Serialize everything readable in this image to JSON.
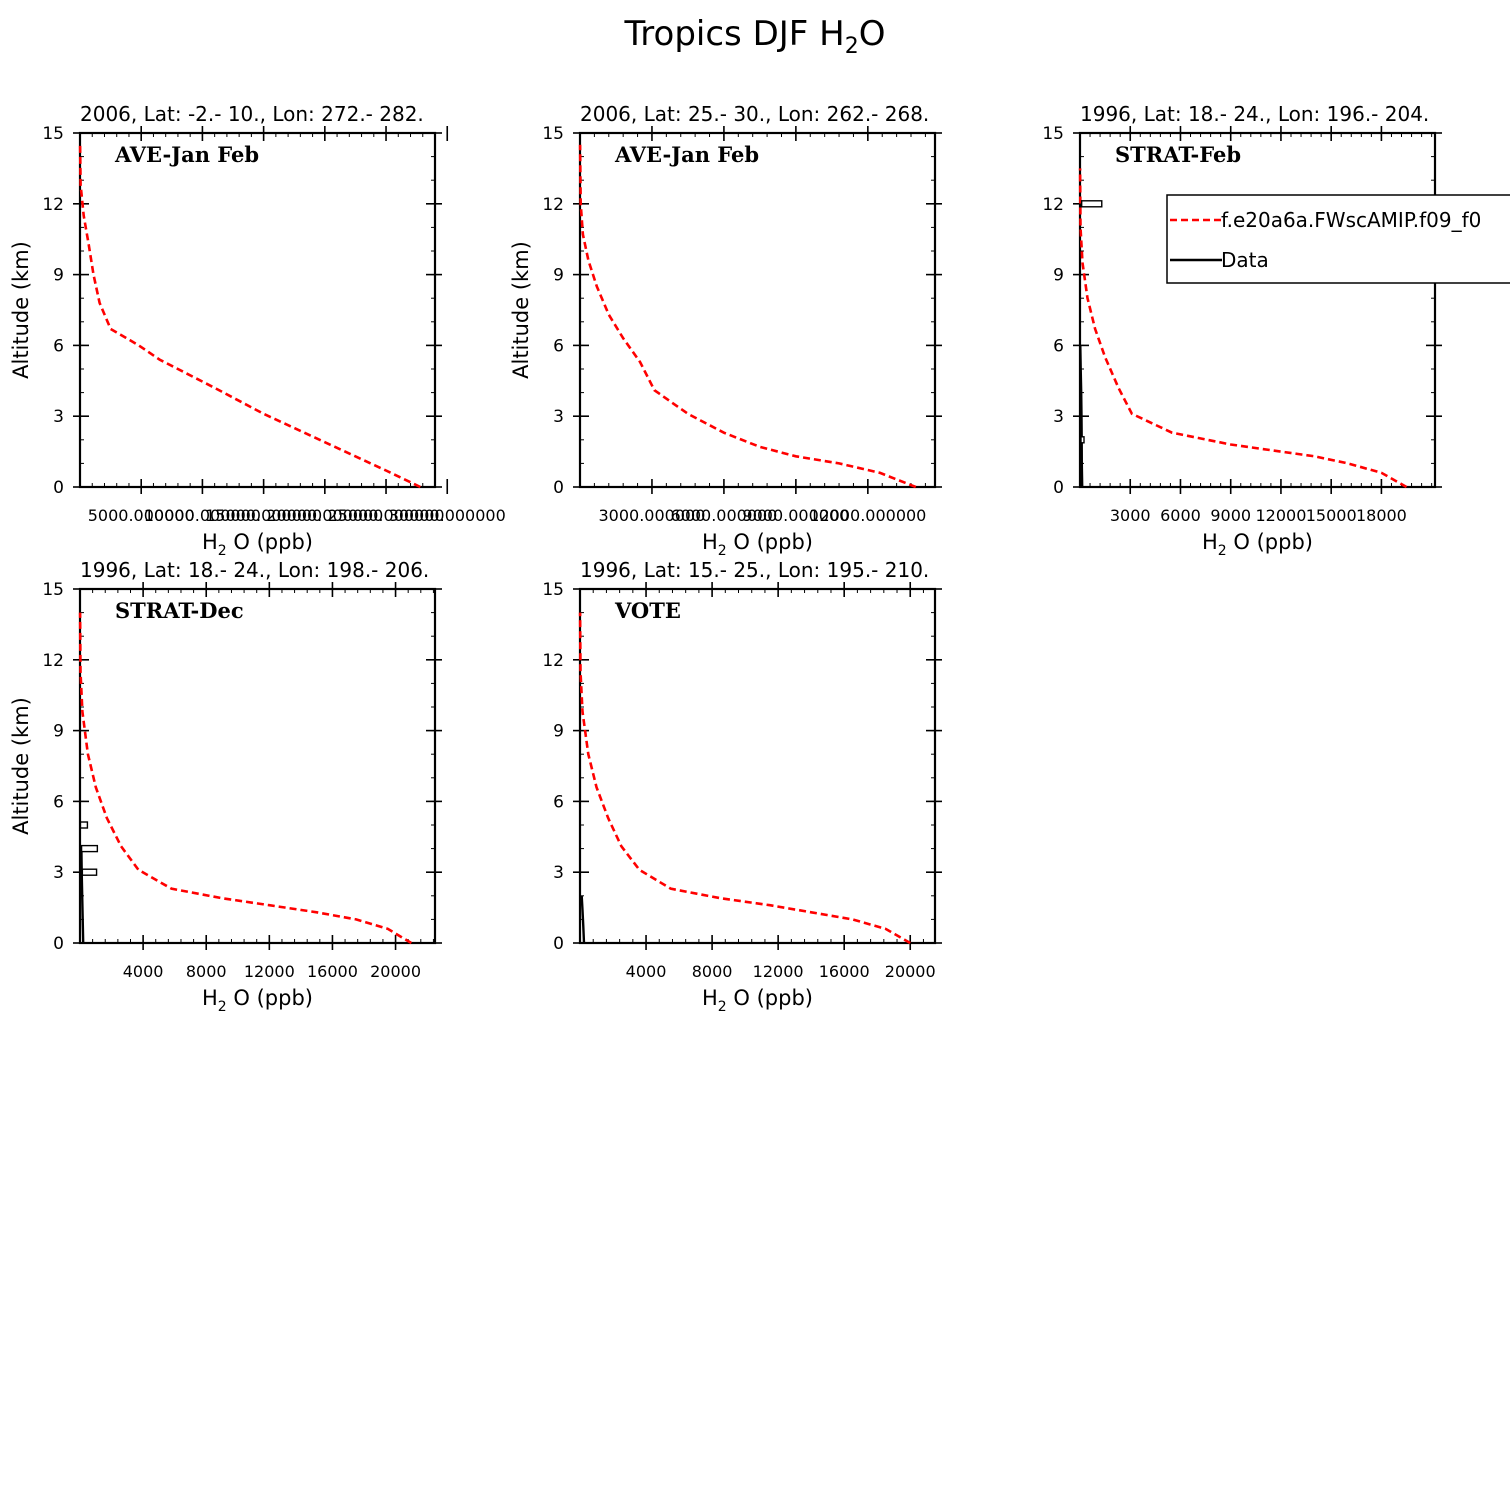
{
  "figure": {
    "title_prefix": "Tropics DJF H",
    "title_sub": "2",
    "title_suffix": "O"
  },
  "legend": {
    "model_label": "f.e20a6a.FWscAMIP.f09_f0",
    "data_label": "Data",
    "model_color": "#ff0000",
    "data_color": "#000000"
  },
  "chart_data": [
    {
      "type": "line",
      "header": "2006, Lat: -2.- 10., Lon: 272.- 282.",
      "campaign": "AVE-Jan Feb",
      "ylabel": "Altitude (km)",
      "xlabel_prefix": "H",
      "xlabel_sub": "2",
      "xlabel_suffix": "O (ppb)",
      "xlim": [
        0,
        29000
      ],
      "ylim": [
        0,
        15
      ],
      "xticks": [
        5000,
        10000,
        15000,
        20000,
        25000,
        30000
      ],
      "xtick_labels": [
        "5000.000000",
        "10000.000000",
        "15000.000000",
        "20000.000000",
        "25000.000000",
        "30000.000000"
      ],
      "yticks": [
        0,
        3,
        6,
        9,
        12,
        15
      ],
      "series": [
        {
          "name": "f.e20a6a.FWscAMIP.f09_f0",
          "style": "dashed",
          "x": [
            27800,
            25000,
            20000,
            15000,
            11000,
            8000,
            6500,
            4800,
            2500,
            1600,
            1100,
            700,
            300,
            50,
            10
          ],
          "y": [
            0,
            0.7,
            1.9,
            3.1,
            4.2,
            5.0,
            5.4,
            6.0,
            6.7,
            7.8,
            9.0,
            10.3,
            11.5,
            12.8,
            14.5
          ]
        }
      ],
      "data_points": []
    },
    {
      "type": "line",
      "header": "2006, Lat: 25.- 30., Lon: 262.- 268.",
      "campaign": "AVE-Jan Feb",
      "ylabel": "Altitude (km)",
      "xlabel_prefix": "H",
      "xlabel_sub": "2",
      "xlabel_suffix": "O (ppb)",
      "xlim": [
        0,
        14800
      ],
      "ylim": [
        0,
        15
      ],
      "xticks": [
        3000,
        6000,
        9000,
        12000
      ],
      "xtick_labels": [
        "3000.000000",
        "6000.000000",
        "9000.000000",
        "12000.000000"
      ],
      "yticks": [
        0,
        3,
        6,
        9,
        12,
        15
      ],
      "series": [
        {
          "name": "f.e20a6a.FWscAMIP.f09_f0",
          "style": "dashed",
          "x": [
            14000,
            12500,
            10800,
            9000,
            7500,
            6000,
            4500,
            3100,
            2500,
            1800,
            1200,
            700,
            350,
            120,
            30,
            5
          ],
          "y": [
            0,
            0.6,
            1.0,
            1.3,
            1.7,
            2.3,
            3.1,
            4.1,
            5.3,
            6.3,
            7.3,
            8.5,
            9.6,
            10.7,
            12.0,
            14.5
          ]
        }
      ],
      "data_points": []
    },
    {
      "type": "line",
      "header": "1996, Lat: 18.- 24., Lon: 196.- 204.",
      "campaign": "STRAT-Feb",
      "ylabel": "",
      "xlabel_prefix": "H",
      "xlabel_sub": "2",
      "xlabel_suffix": "O (ppb)",
      "xlim": [
        0,
        21200
      ],
      "ylim": [
        0,
        15
      ],
      "xticks": [
        3000,
        6000,
        9000,
        12000,
        15000,
        18000
      ],
      "xtick_labels": [
        "3000",
        "6000",
        "9000",
        "12000",
        "15000",
        "18000"
      ],
      "yticks": [
        0,
        3,
        6,
        9,
        12,
        15
      ],
      "series": [
        {
          "name": "f.e20a6a.FWscAMIP.f09_f0",
          "style": "dashed",
          "x": [
            19500,
            18000,
            16000,
            14000,
            12000,
            9000,
            5500,
            3100,
            2300,
            1500,
            900,
            450,
            150,
            30,
            5
          ],
          "y": [
            0,
            0.6,
            1.0,
            1.3,
            1.5,
            1.8,
            2.3,
            3.1,
            4.2,
            5.5,
            6.7,
            8.0,
            9.5,
            11.0,
            13.5
          ]
        },
        {
          "name": "Data",
          "style": "solid",
          "x": [
            130,
            110,
            100,
            90,
            70,
            40,
            20
          ],
          "y": [
            0,
            1,
            2,
            3,
            4,
            5,
            6
          ]
        }
      ],
      "data_points": [
        {
          "x": 700,
          "y": 12,
          "xerr": 600
        },
        {
          "x": 100,
          "y": 2,
          "xerr": 40
        }
      ]
    },
    {
      "type": "line",
      "header": "1996, Lat: 18.- 24., Lon: 198.- 206.",
      "campaign": "STRAT-Dec",
      "ylabel": "Altitude (km)",
      "xlabel_prefix": "H",
      "xlabel_sub": "2",
      "xlabel_suffix": "O (ppb)",
      "xlim": [
        0,
        22500
      ],
      "ylim": [
        0,
        15
      ],
      "xticks": [
        4000,
        8000,
        12000,
        16000,
        20000
      ],
      "xtick_labels": [
        "4000",
        "8000",
        "12000",
        "16000",
        "20000"
      ],
      "yticks": [
        0,
        3,
        6,
        9,
        12,
        15
      ],
      "series": [
        {
          "name": "f.e20a6a.FWscAMIP.f09_f0",
          "style": "dashed",
          "x": [
            21000,
            19500,
            17500,
            15000,
            12000,
            9000,
            5800,
            3700,
            2600,
            1700,
            1000,
            500,
            150,
            30,
            5
          ],
          "y": [
            0,
            0.6,
            1.0,
            1.3,
            1.6,
            1.9,
            2.3,
            3.1,
            4.1,
            5.3,
            6.6,
            8.0,
            9.8,
            11.5,
            14.0
          ]
        },
        {
          "name": "Data",
          "style": "solid",
          "x": [
            200,
            170,
            140,
            110,
            90
          ],
          "y": [
            0,
            1,
            2,
            3,
            4
          ]
        }
      ],
      "data_points": [
        {
          "x": 600,
          "y": 3,
          "xerr": 450
        },
        {
          "x": 600,
          "y": 4,
          "xerr": 500
        },
        {
          "x": 250,
          "y": 5,
          "xerr": 220
        }
      ]
    },
    {
      "type": "line",
      "header": "1996, Lat: 15.- 25., Lon: 195.- 210.",
      "campaign": "VOTE",
      "ylabel": "",
      "xlabel_prefix": "H",
      "xlabel_sub": "2",
      "xlabel_suffix": "O (ppb)",
      "xlim": [
        0,
        21500
      ],
      "ylim": [
        0,
        15
      ],
      "xticks": [
        4000,
        8000,
        12000,
        16000,
        20000
      ],
      "xtick_labels": [
        "4000",
        "8000",
        "12000",
        "16000",
        "20000"
      ],
      "yticks": [
        0,
        3,
        6,
        9,
        12,
        15
      ],
      "series": [
        {
          "name": "f.e20a6a.FWscAMIP.f09_f0",
          "style": "dashed",
          "x": [
            20000,
            18500,
            16500,
            14000,
            11500,
            8500,
            5500,
            3600,
            2500,
            1700,
            1000,
            500,
            150,
            30,
            5
          ],
          "y": [
            0,
            0.6,
            1.0,
            1.3,
            1.6,
            1.9,
            2.3,
            3.1,
            4.1,
            5.3,
            6.6,
            8.0,
            9.8,
            11.5,
            14.0
          ]
        },
        {
          "name": "Data",
          "style": "solid",
          "x": [
            240,
            200,
            150,
            100
          ],
          "y": [
            0,
            0.7,
            1.4,
            2.0
          ]
        }
      ],
      "data_points": []
    }
  ]
}
